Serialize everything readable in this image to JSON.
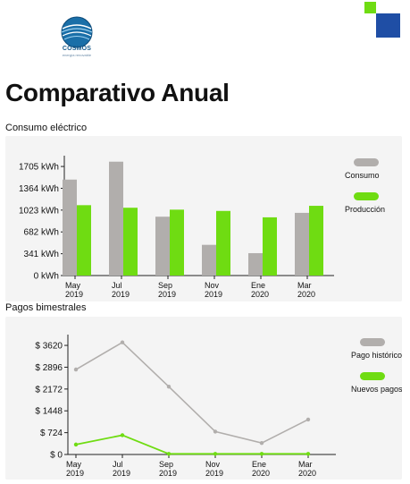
{
  "header": {
    "logo_word": "COSMOS",
    "logo_sub": "energía renovable",
    "colors": {
      "accent_green": "#6fdc12",
      "accent_blue": "#1f4ea5",
      "logo_blue": "#1a5c8c"
    }
  },
  "page": {
    "title": "Comparativo Anual"
  },
  "sections": {
    "consumo_label": "Consumo eléctrico",
    "pagos_label": "Pagos bimestrales"
  },
  "chart_data": [
    {
      "type": "bar",
      "categories": [
        [
          "May",
          "2019"
        ],
        [
          "Jul",
          "2019"
        ],
        [
          "Sep",
          "2019"
        ],
        [
          "Nov",
          "2019"
        ],
        [
          "Ene",
          "2020"
        ],
        [
          "Mar",
          "2020"
        ]
      ],
      "series": [
        {
          "name": "Consumo",
          "color": "#b1aeac",
          "values": [
            1500,
            1780,
            920,
            480,
            350,
            980
          ]
        },
        {
          "name": "Producción",
          "color": "#6fdc12",
          "values": [
            1100,
            1060,
            1030,
            1010,
            910,
            1090
          ]
        }
      ],
      "yticks": [
        0,
        341,
        682,
        1023,
        1364,
        1705
      ],
      "ytick_labels": [
        "0 kWh",
        "341 kWh",
        "682 kWh",
        "1023 kWh",
        "1364 kWh",
        "1705 kWh"
      ],
      "ylim": [
        0,
        1790
      ],
      "legend": "right"
    },
    {
      "type": "line",
      "categories": [
        [
          "May",
          "2019"
        ],
        [
          "Jul",
          "2019"
        ],
        [
          "Sep",
          "2019"
        ],
        [
          "Nov",
          "2019"
        ],
        [
          "Ene",
          "2020"
        ],
        [
          "Mar",
          "2020"
        ]
      ],
      "series": [
        {
          "name": "Pago histórico",
          "color": "#b1aeac",
          "values": [
            2820,
            3720,
            2250,
            760,
            380,
            1160
          ]
        },
        {
          "name": "Nuevos pagos",
          "color": "#6fdc12",
          "values": [
            330,
            640,
            20,
            20,
            20,
            20
          ]
        }
      ],
      "yticks": [
        0,
        724,
        1448,
        2172,
        2896,
        3620
      ],
      "ytick_labels": [
        "$ 0",
        "$ 724",
        "$ 1448",
        "$ 2172",
        "$ 2896",
        "$ 3620"
      ],
      "ylim": [
        0,
        3800
      ],
      "legend": "right"
    }
  ]
}
